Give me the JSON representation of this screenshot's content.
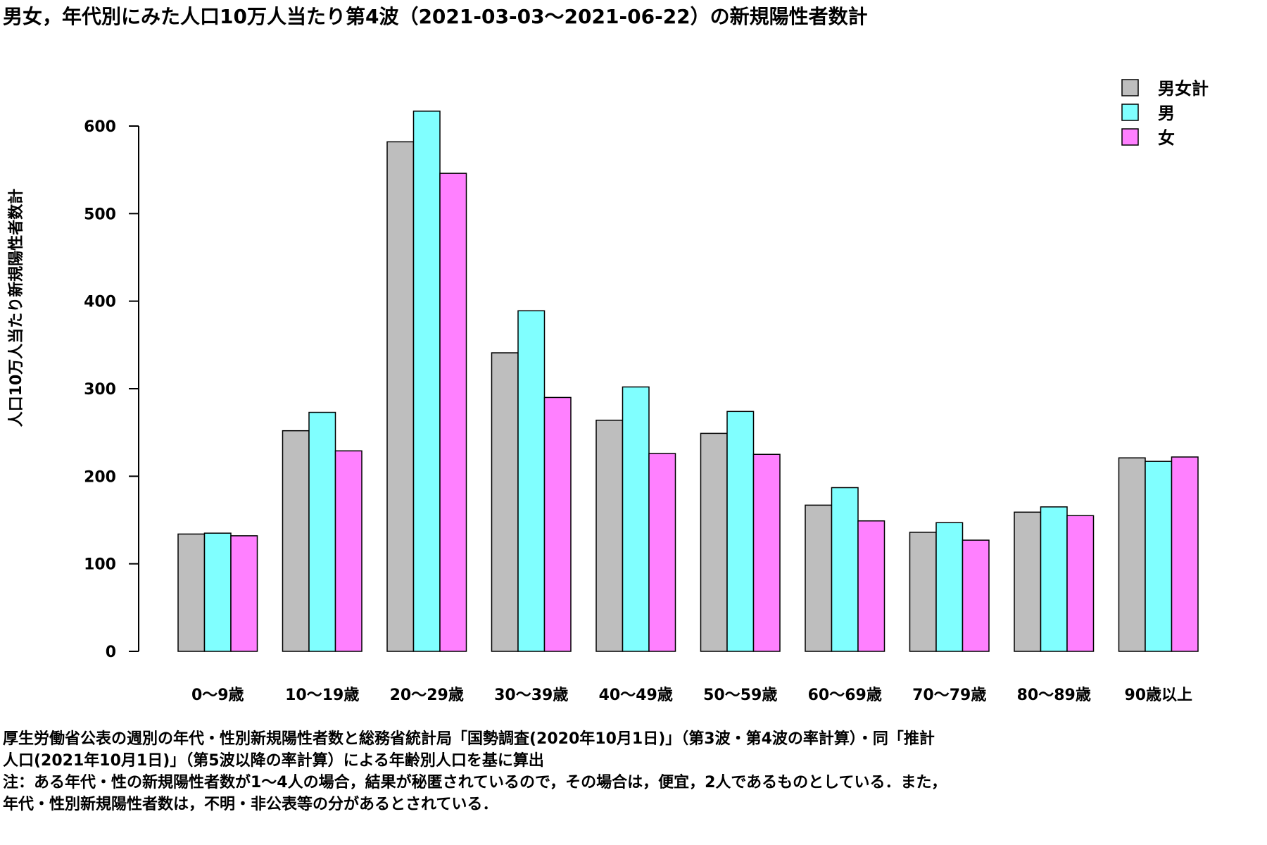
{
  "title": "男女，年代別にみた人口10万人当たり第4波（2021-03-03〜2021-06-22）の新規陽性者数計",
  "notes": [
    "厚生労働省公表の週別の年代・性別新規陽性者数と総務省統計局「国勢調査(2020年10月1日)」（第3波・第4波の率計算）・同「推計",
    "人口(2021年10月1日)」（第5波以降の率計算）による年齢別人口を基に算出",
    "注：ある年代・性の新規陽性者数が1〜4人の場合，結果が秘匿されているので，その場合は，便宜，2人であるものとしている．また，",
    "年代・性別新規陽性者数は，不明・非公表等の分があるとされている．"
  ],
  "chart_data": {
    "type": "bar",
    "title": "男女，年代別にみた人口10万人当たり第4波（2021-03-03〜2021-06-22）の新規陽性者数計",
    "xlabel": "",
    "ylabel": "人口10万人当たり新規陽性者数計",
    "ylim": [
      0,
      600
    ],
    "yticks": [
      0,
      100,
      200,
      300,
      400,
      500,
      600
    ],
    "grid": false,
    "legend_position": "top-right",
    "categories": [
      "0〜9歳",
      "10〜19歳",
      "20〜29歳",
      "30〜39歳",
      "40〜49歳",
      "50〜59歳",
      "60〜69歳",
      "70〜79歳",
      "80〜89歳",
      "90歳以上"
    ],
    "series": [
      {
        "name": "男女計",
        "color": "#bebebe",
        "values": [
          134,
          252,
          582,
          341,
          264,
          249,
          167,
          136,
          159,
          221
        ]
      },
      {
        "name": "男",
        "color": "#80ffff",
        "values": [
          135,
          273,
          617,
          389,
          302,
          274,
          187,
          147,
          165,
          217
        ]
      },
      {
        "name": "女",
        "color": "#ff80ff",
        "values": [
          132,
          229,
          546,
          290,
          226,
          225,
          149,
          127,
          155,
          222
        ]
      }
    ]
  }
}
